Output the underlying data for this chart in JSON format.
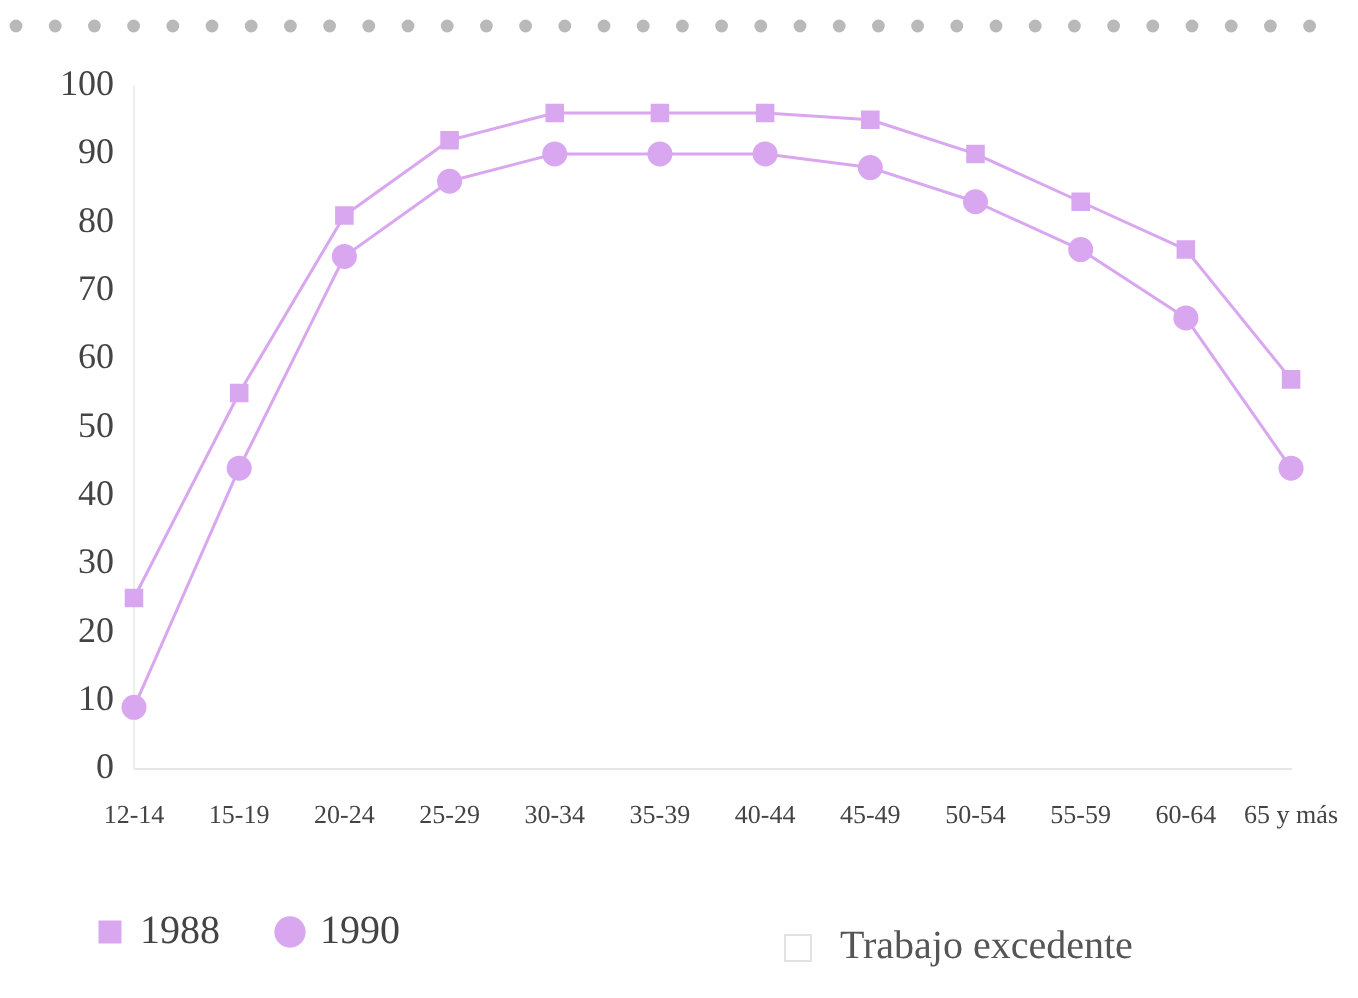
{
  "chart_data": {
    "type": "line",
    "categories": [
      "12-14",
      "15-19",
      "20-24",
      "25-29",
      "30-34",
      "35-39",
      "40-44",
      "45-49",
      "50-54",
      "55-59",
      "60-64",
      "65 y más"
    ],
    "series": [
      {
        "name": "1988",
        "color": "#d9a6f0",
        "marker": "square",
        "values": [
          25,
          55,
          81,
          92,
          96,
          96,
          96,
          95,
          90,
          83,
          76,
          57
        ]
      },
      {
        "name": "1990",
        "color": "#d9a6f0",
        "marker": "circle",
        "values": [
          9,
          44,
          75,
          86,
          90,
          90,
          90,
          88,
          83,
          76,
          66,
          44
        ]
      }
    ],
    "ylim": [
      0,
      100
    ],
    "yticks": [
      0,
      10,
      20,
      30,
      40,
      50,
      60,
      70,
      80,
      90,
      100
    ],
    "grid": false,
    "legend": "bottom left",
    "annotations": [
      "Trabajo excedente"
    ]
  }
}
